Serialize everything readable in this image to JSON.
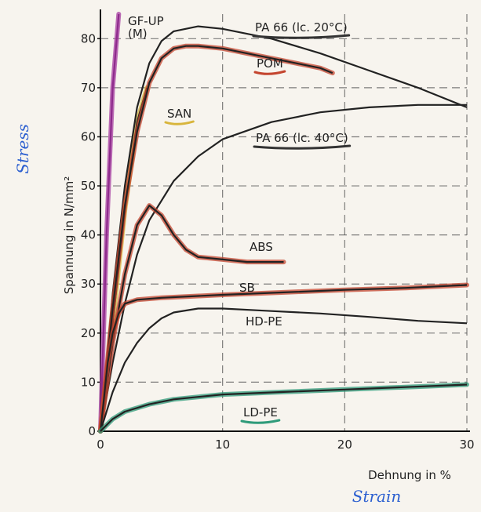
{
  "chart_data": {
    "type": "line",
    "title": "",
    "xlabel": "Dehnung in %",
    "ylabel": "Spannung in N/mm²",
    "xlabel_handwritten": "Strain",
    "ylabel_handwritten": "Stress",
    "xlim": [
      0,
      30
    ],
    "ylim": [
      0,
      85
    ],
    "xticks": [
      0,
      10,
      20,
      30
    ],
    "yticks": [
      0,
      10,
      20,
      30,
      40,
      50,
      60,
      70,
      80
    ],
    "grid": true,
    "series": [
      {
        "name": "GF-UP",
        "sub": "(M)",
        "color": "#8e2a8c",
        "highlight": "#a63ca0",
        "points": [
          [
            0,
            0
          ],
          [
            0.5,
            40
          ],
          [
            1.0,
            70
          ],
          [
            1.5,
            85
          ]
        ]
      },
      {
        "name": "SAN",
        "color": "#222222",
        "highlight": "#d8b53c",
        "points": [
          [
            0,
            0
          ],
          [
            1,
            22
          ],
          [
            2,
            45
          ],
          [
            3,
            63
          ],
          [
            3.8,
            70
          ]
        ]
      },
      {
        "name": "PA 66 (lc. 20°C)",
        "color": "#222222",
        "points": [
          [
            0,
            0
          ],
          [
            1,
            28
          ],
          [
            2,
            50
          ],
          [
            3,
            66
          ],
          [
            4,
            75
          ],
          [
            5,
            79.5
          ],
          [
            6,
            81.5
          ],
          [
            8,
            82.5
          ],
          [
            10,
            82
          ],
          [
            14,
            80
          ],
          [
            18,
            77
          ],
          [
            22,
            73.5
          ],
          [
            26,
            70
          ],
          [
            30,
            66
          ]
        ]
      },
      {
        "name": "POM",
        "color": "#222222",
        "highlight": "#c4452f",
        "points": [
          [
            0,
            0
          ],
          [
            1,
            25
          ],
          [
            2,
            46
          ],
          [
            3,
            61
          ],
          [
            4,
            71
          ],
          [
            5,
            76
          ],
          [
            6,
            78
          ],
          [
            7,
            78.5
          ],
          [
            8,
            78.5
          ],
          [
            10,
            78
          ],
          [
            12,
            77
          ],
          [
            14,
            76
          ],
          [
            16,
            75
          ],
          [
            18,
            74
          ],
          [
            19,
            73
          ]
        ]
      },
      {
        "name": "PA 66 (lc. 40°C)",
        "color": "#222222",
        "points": [
          [
            0,
            0
          ],
          [
            1,
            14
          ],
          [
            2,
            26
          ],
          [
            3,
            36
          ],
          [
            4,
            43
          ],
          [
            6,
            51
          ],
          [
            8,
            56
          ],
          [
            10,
            59.5
          ],
          [
            14,
            63
          ],
          [
            18,
            65
          ],
          [
            22,
            66
          ],
          [
            26,
            66.5
          ],
          [
            30,
            66.5
          ]
        ]
      },
      {
        "name": "ABS",
        "color": "#222222",
        "highlight": "#c4452f",
        "points": [
          [
            0,
            0
          ],
          [
            1,
            18
          ],
          [
            2,
            32
          ],
          [
            3,
            42
          ],
          [
            4,
            46
          ],
          [
            5,
            44
          ],
          [
            6,
            40
          ],
          [
            7,
            37
          ],
          [
            8,
            35.5
          ],
          [
            10,
            35
          ],
          [
            12,
            34.5
          ],
          [
            14,
            34.5
          ],
          [
            15,
            34.5
          ]
        ]
      },
      {
        "name": "SB",
        "color": "#222222",
        "highlight": "#c4452f",
        "points": [
          [
            0,
            0
          ],
          [
            0.6,
            14
          ],
          [
            1,
            20
          ],
          [
            1.5,
            24
          ],
          [
            2,
            26
          ],
          [
            3,
            26.8
          ],
          [
            5,
            27.2
          ],
          [
            10,
            27.8
          ],
          [
            15,
            28.3
          ],
          [
            20,
            28.8
          ],
          [
            25,
            29.2
          ],
          [
            30,
            29.8
          ]
        ]
      },
      {
        "name": "HD-PE",
        "color": "#222222",
        "points": [
          [
            0,
            0
          ],
          [
            1,
            8
          ],
          [
            2,
            14
          ],
          [
            3,
            18
          ],
          [
            4,
            21
          ],
          [
            5,
            23
          ],
          [
            6,
            24.2
          ],
          [
            8,
            25
          ],
          [
            10,
            25
          ],
          [
            14,
            24.5
          ],
          [
            18,
            24
          ],
          [
            22,
            23.3
          ],
          [
            26,
            22.5
          ],
          [
            30,
            22
          ]
        ]
      },
      {
        "name": "LD-PE",
        "color": "#222222",
        "highlight": "#2f9b7a",
        "points": [
          [
            0,
            0
          ],
          [
            1,
            2.5
          ],
          [
            2,
            4
          ],
          [
            4,
            5.5
          ],
          [
            6,
            6.5
          ],
          [
            10,
            7.5
          ],
          [
            15,
            8
          ],
          [
            20,
            8.5
          ],
          [
            25,
            9
          ],
          [
            30,
            9.5
          ]
        ]
      }
    ]
  },
  "icons": {
    "squiggle": "hand-drawn-underline-icon"
  }
}
